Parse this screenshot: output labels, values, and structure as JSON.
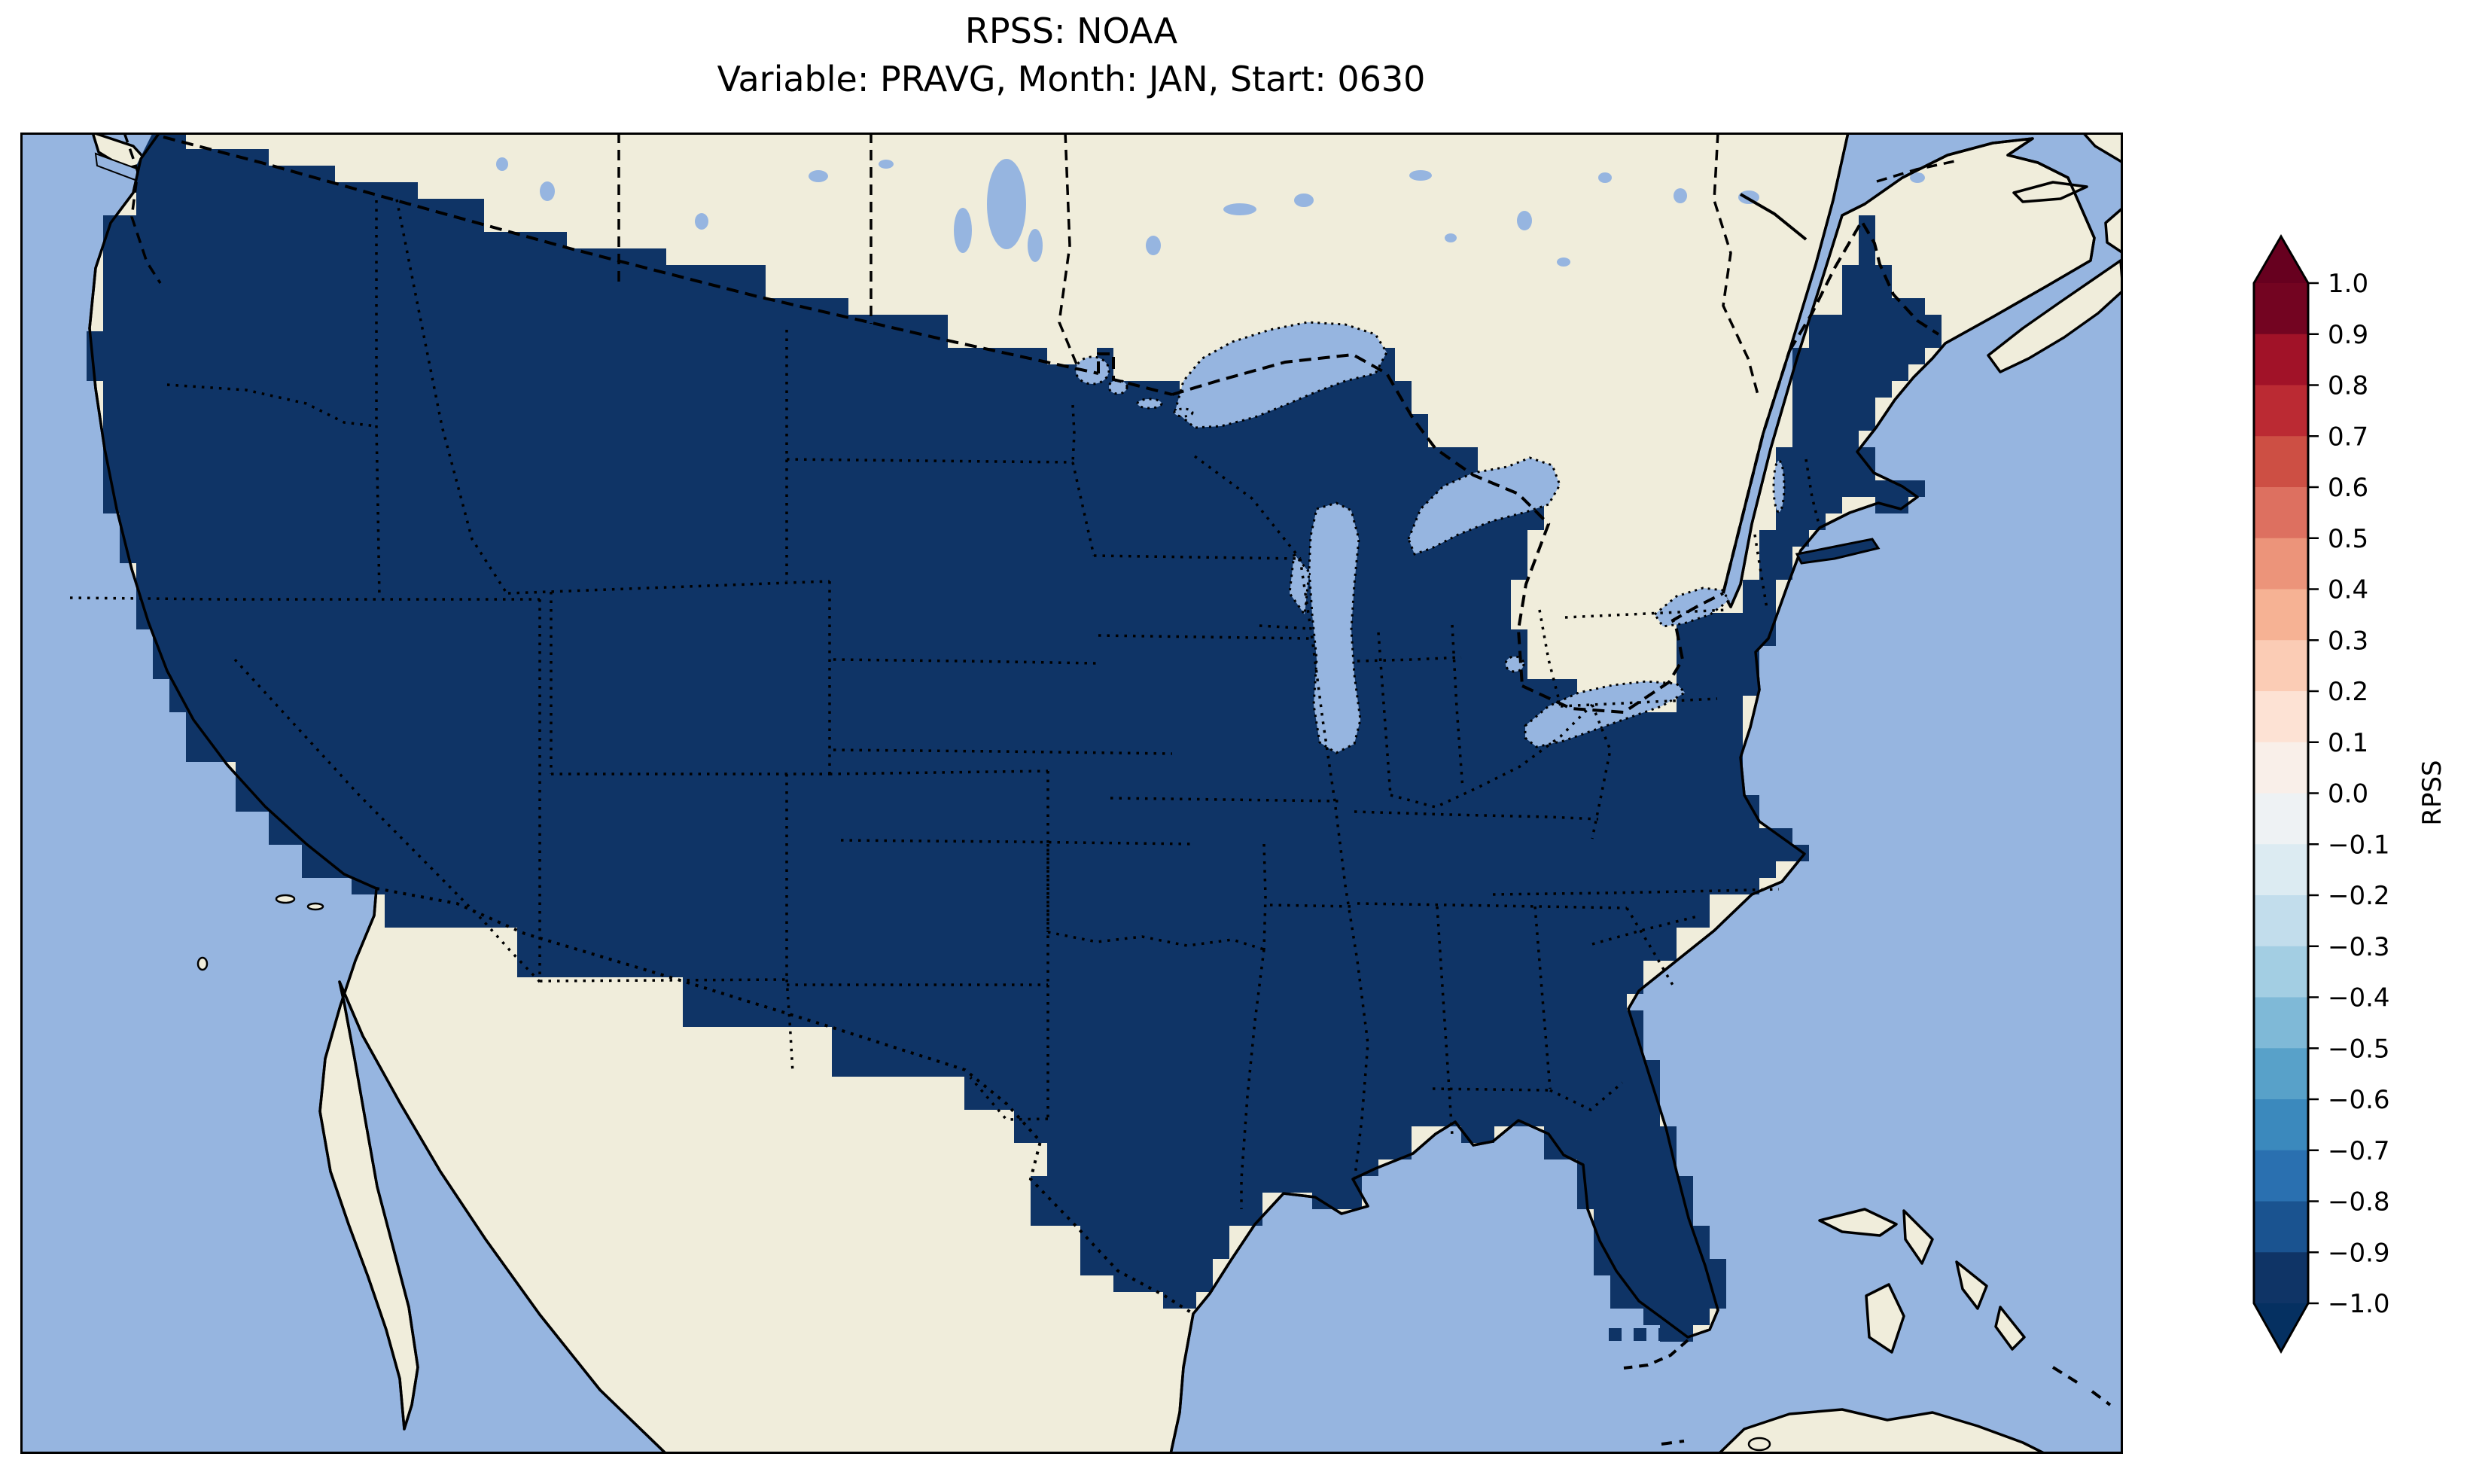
{
  "title": {
    "line1": "RPSS: NOAA",
    "line2": "Variable: PRAVG, Month: JAN, Start: 0630"
  },
  "chart_data": {
    "type": "choropleth_map",
    "title": "RPSS: NOAA",
    "subtitle": "Variable: PRAVG, Month: JAN, Start: 0630",
    "fields": {
      "metric": "RPSS",
      "model": "NOAA",
      "variable": "PRAVG",
      "month": "JAN",
      "start": "0630"
    },
    "colorbar": {
      "label": "RPSS",
      "orientation": "vertical",
      "position": "right",
      "range": [
        -1.0,
        1.0
      ],
      "tick_step": 0.1,
      "extend": "both",
      "tick_labels": [
        "1.0",
        "0.9",
        "0.8",
        "0.7",
        "0.6",
        "0.5",
        "0.4",
        "0.3",
        "0.2",
        "0.1",
        "0.0",
        "−0.1",
        "−0.2",
        "−0.3",
        "−0.4",
        "−0.5",
        "−0.6",
        "−0.7",
        "−0.8",
        "−0.9",
        "−1.0"
      ],
      "segment_colors": [
        "#730421",
        "#a11228",
        "#bb2a33",
        "#cd4f44",
        "#dd7060",
        "#ec947a",
        "#f6b294",
        "#fbccb5",
        "#fde2d4",
        "#f9efe9",
        "#eef2f4",
        "#dcebf2",
        "#c2ddec",
        "#a3cee3",
        "#7fb9d7",
        "#58a1c9",
        "#3b89bd",
        "#2a70b0",
        "#1a5390",
        "#0f3466"
      ],
      "arrow_over_color": "#67001f",
      "arrow_under_color": "#053061"
    },
    "map": {
      "projection": "Lambert Conformal (CONUS view)",
      "region": "Contiguous United States with southern Canada, northern Mexico, Gulf of Mexico, Bahamas and Cuba",
      "ocean_color": "#96b5e0",
      "land_color": "#f0eddb",
      "lake_color": "#96b5e0",
      "us_fill_color": "#0f3466",
      "us_rpss_value": -1.0,
      "us_rpss_bin": "−1.0 to −0.9 (lowest bin)",
      "data_notes": "Entire CONUS grid is filled with the most-negative RPSS bin; Great Lakes and oceans are masked; three isolated grid cells appear offshore southwest of the Florida Keys.",
      "boundaries": {
        "coastlines": "solid black",
        "international": "dashed black",
        "states_provinces": "dotted black",
        "lakes": "dotted black"
      }
    }
  }
}
